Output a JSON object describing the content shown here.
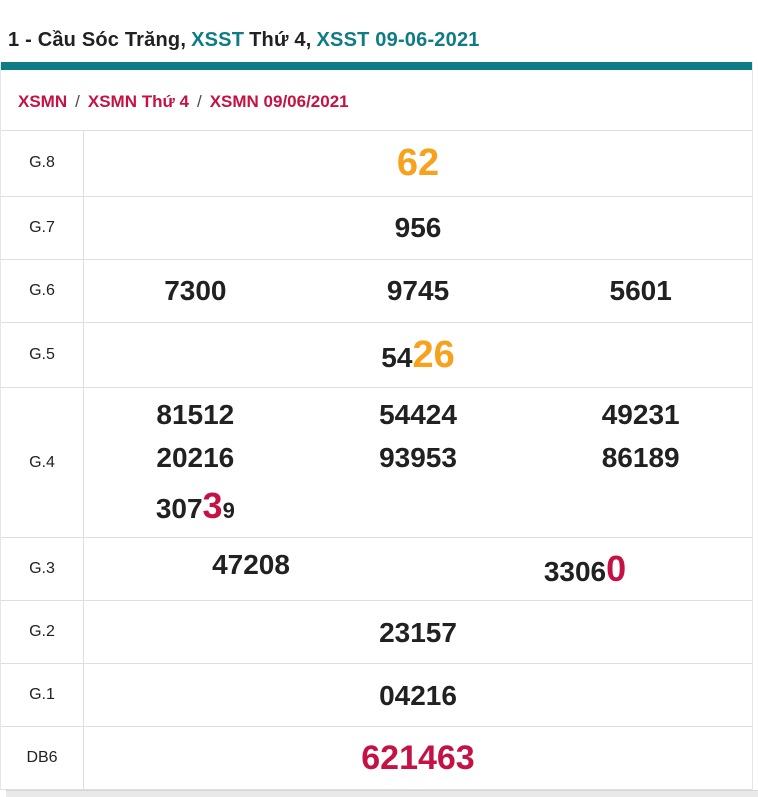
{
  "colors": {
    "dark": "#212121",
    "teal": "#0d7c85",
    "red": "#c51244",
    "orange": "#f7a11d",
    "border": "#dedede"
  },
  "title": {
    "segments": [
      {
        "text": "1 - Cầu Sóc Trăng,",
        "color": "dark",
        "link": false
      },
      {
        "text": "XSST",
        "color": "teal",
        "link": true
      },
      {
        "text": "Thứ 4,",
        "color": "dark",
        "link": false
      },
      {
        "text": "XSST 09-06-2021",
        "color": "teal",
        "link": true
      }
    ]
  },
  "breadcrumb": {
    "separator": "/",
    "items": [
      {
        "label": "XSMN"
      },
      {
        "label": "XSMN Thứ 4"
      },
      {
        "label": "XSMN 09/06/2021"
      }
    ]
  },
  "table": {
    "default_font_size": 28,
    "rows": [
      {
        "label": "G.8",
        "lines": [
          [
            [
              {
                "t": "62",
                "c": "orange",
                "fs": 38
              }
            ]
          ]
        ]
      },
      {
        "label": "G.7",
        "lines": [
          [
            [
              {
                "t": "956"
              }
            ]
          ]
        ]
      },
      {
        "label": "G.6",
        "lines": [
          [
            [
              {
                "t": "7300"
              }
            ],
            [
              {
                "t": "9745"
              }
            ],
            [
              {
                "t": "5601"
              }
            ]
          ]
        ]
      },
      {
        "label": "G.5",
        "lines": [
          [
            [
              {
                "t": "54"
              },
              {
                "t": "26",
                "c": "orange",
                "fs": 38
              }
            ]
          ]
        ]
      },
      {
        "label": "G.4",
        "lines": [
          [
            [
              {
                "t": "81512"
              }
            ],
            [
              {
                "t": "54424"
              }
            ],
            [
              {
                "t": "49231"
              }
            ]
          ],
          [
            [
              {
                "t": "20216"
              }
            ],
            [
              {
                "t": "93953"
              }
            ],
            [
              {
                "t": "86189"
              }
            ]
          ],
          [
            [
              {
                "t": "307"
              },
              {
                "t": "3",
                "c": "red",
                "fs": 36
              },
              {
                "t": "9",
                "fs": 22
              }
            ],
            [],
            []
          ]
        ]
      },
      {
        "label": "G.3",
        "lines": [
          [
            [
              {
                "t": "47208"
              }
            ],
            [
              {
                "t": "3306"
              },
              {
                "t": "0",
                "c": "red",
                "fs": 36
              }
            ]
          ]
        ]
      },
      {
        "label": "G.2",
        "lines": [
          [
            [
              {
                "t": "23157"
              }
            ]
          ]
        ]
      },
      {
        "label": "G.1",
        "lines": [
          [
            [
              {
                "t": "04216"
              }
            ]
          ]
        ]
      },
      {
        "label": "DB6",
        "lines": [
          [
            [
              {
                "t": "621463",
                "c": "red",
                "fs": 34
              }
            ]
          ]
        ]
      }
    ]
  }
}
